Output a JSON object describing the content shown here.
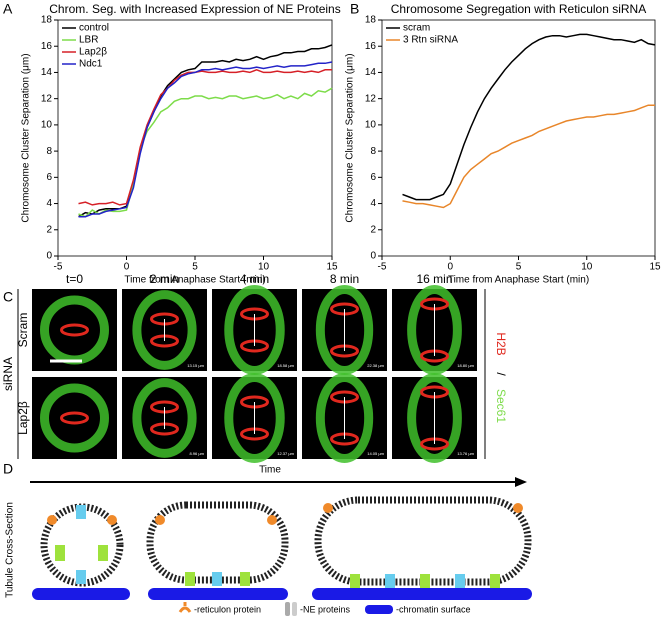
{
  "chart_data": [
    {
      "type": "line",
      "title": "Chrom. Seg. with Increased Expression of NE Proteins",
      "xlabel": "Time from Anaphase Start (min)",
      "ylabel": "Chromosome Cluster Separation (μm)",
      "x": [
        -3.5,
        -3,
        -2.5,
        -2,
        -1.5,
        -1,
        -0.5,
        0,
        0.5,
        1,
        1.5,
        2,
        2.5,
        3,
        3.5,
        4,
        4.5,
        5,
        5.5,
        6,
        6.5,
        7,
        7.5,
        8,
        8.5,
        9,
        9.5,
        10,
        10.5,
        11,
        11.5,
        12,
        12.5,
        13,
        13.5,
        14,
        14.5,
        15
      ],
      "series": [
        {
          "name": "control",
          "color": "#000000",
          "values": [
            3.0,
            3.3,
            3.2,
            3.5,
            3.6,
            3.6,
            3.6,
            3.8,
            5.5,
            8,
            9.8,
            11,
            12.2,
            13,
            13.5,
            14,
            14.2,
            14.3,
            14.8,
            14.8,
            14.8,
            14.9,
            14.8,
            15,
            14.9,
            15,
            15.2,
            15,
            15.2,
            15.3,
            15.5,
            15.5,
            15.6,
            15.6,
            15.8,
            15.8,
            15.9,
            16.1
          ]
        },
        {
          "name": "LBR",
          "color": "#7ddc4a",
          "values": [
            3.2,
            3.0,
            3.5,
            3.2,
            3.5,
            3.4,
            3.4,
            3.5,
            5.5,
            8.2,
            9.5,
            10.2,
            11,
            11.3,
            11.8,
            12,
            12,
            12.2,
            12.2,
            12,
            12.1,
            12,
            12.2,
            12.2,
            12,
            12.1,
            12.2,
            12,
            12.1,
            12.3,
            12,
            12.2,
            12,
            12.4,
            12.2,
            12.6,
            12.5,
            12.8
          ]
        },
        {
          "name": "Lap2β",
          "color": "#d62027",
          "values": [
            4.0,
            4.1,
            3.9,
            4.0,
            4.0,
            4.1,
            3.9,
            4.0,
            5.8,
            8.3,
            10,
            11.2,
            12.3,
            12.8,
            13.4,
            13.8,
            14,
            14,
            14.1,
            14,
            14,
            14.1,
            14,
            14,
            14.1,
            14,
            14.2,
            14,
            14,
            14.1,
            14,
            14,
            14.1,
            14,
            14.1,
            14,
            14.2,
            14.2
          ]
        },
        {
          "name": "Ndc1",
          "color": "#2323c8",
          "values": [
            3.0,
            3.0,
            3.2,
            3.2,
            3.4,
            3.5,
            3.6,
            3.7,
            5.2,
            7.8,
            9.8,
            11,
            12,
            12.8,
            13.2,
            13.7,
            13.9,
            14,
            14.2,
            14.2,
            14.3,
            14.2,
            14.3,
            14.4,
            14.3,
            14.3,
            14.4,
            14.3,
            14.4,
            14.5,
            14.4,
            14.5,
            14.5,
            14.5,
            14.6,
            14.7,
            14.7,
            14.8
          ]
        }
      ],
      "xlim": [
        -5,
        15
      ],
      "xticks": [
        -5,
        0,
        5,
        10,
        15
      ],
      "ylim": [
        0,
        18
      ],
      "yticks": [
        0,
        2,
        4,
        6,
        8,
        10,
        12,
        14,
        16,
        18
      ],
      "legend": "upper left"
    },
    {
      "type": "line",
      "title": "Chromosome Segregation with Reticulon siRNA",
      "xlabel": "Time from Anaphase Start (min)",
      "ylabel": "Chromosome Cluster Separation (μm)",
      "x": [
        -3.5,
        -3,
        -2.5,
        -2,
        -1.5,
        -1,
        -0.5,
        0,
        0.5,
        1,
        1.5,
        2,
        2.5,
        3,
        3.5,
        4,
        4.5,
        5,
        5.5,
        6,
        6.5,
        7,
        7.5,
        8,
        8.5,
        9,
        9.5,
        10,
        10.5,
        11,
        11.5,
        12,
        12.5,
        13,
        13.5,
        14,
        14.5,
        15
      ],
      "series": [
        {
          "name": "scram",
          "color": "#000000",
          "values": [
            4.7,
            4.5,
            4.3,
            4.3,
            4.3,
            4.5,
            4.7,
            5.5,
            7,
            8.5,
            9.8,
            11,
            12,
            12.8,
            13.5,
            14.2,
            14.8,
            15.3,
            15.8,
            16.2,
            16.5,
            16.7,
            16.8,
            16.8,
            16.7,
            16.8,
            16.9,
            16.9,
            16.8,
            16.7,
            16.6,
            16.5,
            16.5,
            16.4,
            16.3,
            16.5,
            16.2,
            16.1
          ]
        },
        {
          "name": "3 Rtn siRNA",
          "color": "#e8862a",
          "values": [
            4.2,
            4.1,
            4.0,
            4.0,
            3.9,
            3.8,
            3.7,
            4.0,
            5.0,
            6.0,
            6.6,
            7.0,
            7.4,
            7.8,
            8.0,
            8.3,
            8.6,
            8.8,
            9.0,
            9.2,
            9.5,
            9.7,
            9.9,
            10.1,
            10.3,
            10.4,
            10.5,
            10.6,
            10.6,
            10.7,
            10.8,
            10.8,
            10.9,
            11.0,
            11.1,
            11.3,
            11.5,
            11.5
          ]
        }
      ],
      "xlim": [
        -5,
        15
      ],
      "xticks": [
        -5,
        0,
        5,
        10,
        15
      ],
      "ylim": [
        0,
        18
      ],
      "yticks": [
        0,
        2,
        4,
        6,
        8,
        10,
        12,
        14,
        16,
        18
      ],
      "legend": "upper left"
    }
  ],
  "panel_labels": [
    "A",
    "B",
    "C",
    "D"
  ],
  "microscopy": {
    "times": [
      "t=0",
      "2 min",
      "4 min",
      "8 min",
      "16 min"
    ],
    "rows": [
      "Scram",
      "Lap2β"
    ],
    "group": "siRNA",
    "stain": [
      "H2B",
      "/",
      "Sec61"
    ],
    "measurements": [
      [
        "13.15 µm",
        "18.58 µm",
        "22.38 µm",
        "18.80 µm"
      ],
      [
        "8.96 µm",
        "12.37 µm",
        "14.05 µm",
        "13.76 µm"
      ]
    ]
  },
  "diagram": {
    "time": "Time",
    "axis": "Tubule Cross-Section",
    "legend": [
      "-reticulon protein",
      "-NE proteins",
      "-chromatin surface"
    ]
  }
}
